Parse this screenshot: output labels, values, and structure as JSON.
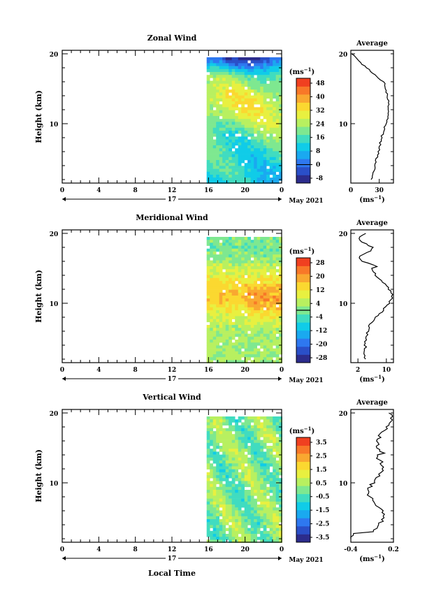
{
  "figure": {
    "x_axis_label": "Local Time",
    "day_label": "17",
    "month_label": "May 2021",
    "unit_label": "(ms",
    "unit_exp": "−1",
    "y_ticks": [
      "20",
      "10"
    ],
    "x_ticks": [
      "0",
      "4",
      "8",
      "12",
      "16",
      "20",
      "0"
    ]
  },
  "chart_data": [
    {
      "type": "heatmap",
      "title": "Zonal Wind",
      "ylabel": "Height (km)",
      "xlabel": "Local Time",
      "x_range": [
        0,
        24
      ],
      "y_range": [
        1.5,
        20.5
      ],
      "data_x_start": 15.8,
      "colorbar": {
        "unit": "(ms⁻¹)",
        "ticks": [
          -8,
          0,
          8,
          16,
          24,
          32,
          40,
          48
        ],
        "zero_line": 0
      },
      "palette": [
        "#2c2c8c",
        "#2a4fc8",
        "#2e78f0",
        "#1aa9f0",
        "#10cce8",
        "#40dcc0",
        "#7ee890",
        "#b8f060",
        "#e8f040",
        "#fbd830",
        "#f9a830",
        "#f87828",
        "#f04020"
      ],
      "profile": {
        "title": "Average",
        "xlabel": "(ms⁻¹)",
        "x_ticks": [
          "0",
          "30"
        ],
        "x_range": [
          0,
          45
        ]
      }
    },
    {
      "type": "heatmap",
      "title": "Meridional Wind",
      "ylabel": "Height (km)",
      "xlabel": "Local Time",
      "x_range": [
        0,
        24
      ],
      "y_range": [
        1.5,
        20.5
      ],
      "data_x_start": 15.8,
      "colorbar": {
        "unit": "(ms⁻¹)",
        "ticks": [
          -28,
          -20,
          -12,
          -4,
          4,
          12,
          20,
          28
        ],
        "zero_line": 0
      },
      "palette": [
        "#2c2c8c",
        "#2a4fc8",
        "#2e78f0",
        "#1aa9f0",
        "#10cce8",
        "#40dcc0",
        "#7ee890",
        "#b8f060",
        "#e8f040",
        "#fbd830",
        "#f9a830",
        "#f87828",
        "#f04020"
      ],
      "profile": {
        "title": "Average",
        "xlabel": "(ms⁻¹)",
        "x_ticks": [
          "2",
          "10"
        ],
        "x_range": [
          0,
          12
        ]
      }
    },
    {
      "type": "heatmap",
      "title": "Vertical Wind",
      "ylabel": "Height (km)",
      "xlabel": "Local Time",
      "x_range": [
        0,
        24
      ],
      "y_range": [
        1.5,
        20.5
      ],
      "data_x_start": 15.8,
      "colorbar": {
        "unit": "(ms⁻¹)",
        "ticks": [
          -3.5,
          -2.5,
          -1.5,
          -0.5,
          0.5,
          1.5,
          2.5,
          3.5
        ]
      },
      "palette": [
        "#2c2c8c",
        "#2a4fc8",
        "#2e78f0",
        "#1aa9f0",
        "#10cce8",
        "#40dcc0",
        "#7ee890",
        "#b8f060",
        "#e8f040",
        "#fbd830",
        "#f9a830",
        "#f87828",
        "#f04020"
      ],
      "profile": {
        "title": "Average",
        "xlabel": "(ms⁻¹)",
        "x_ticks": [
          "-0.4",
          "0.2"
        ],
        "x_range": [
          -0.4,
          0.2
        ]
      }
    }
  ]
}
